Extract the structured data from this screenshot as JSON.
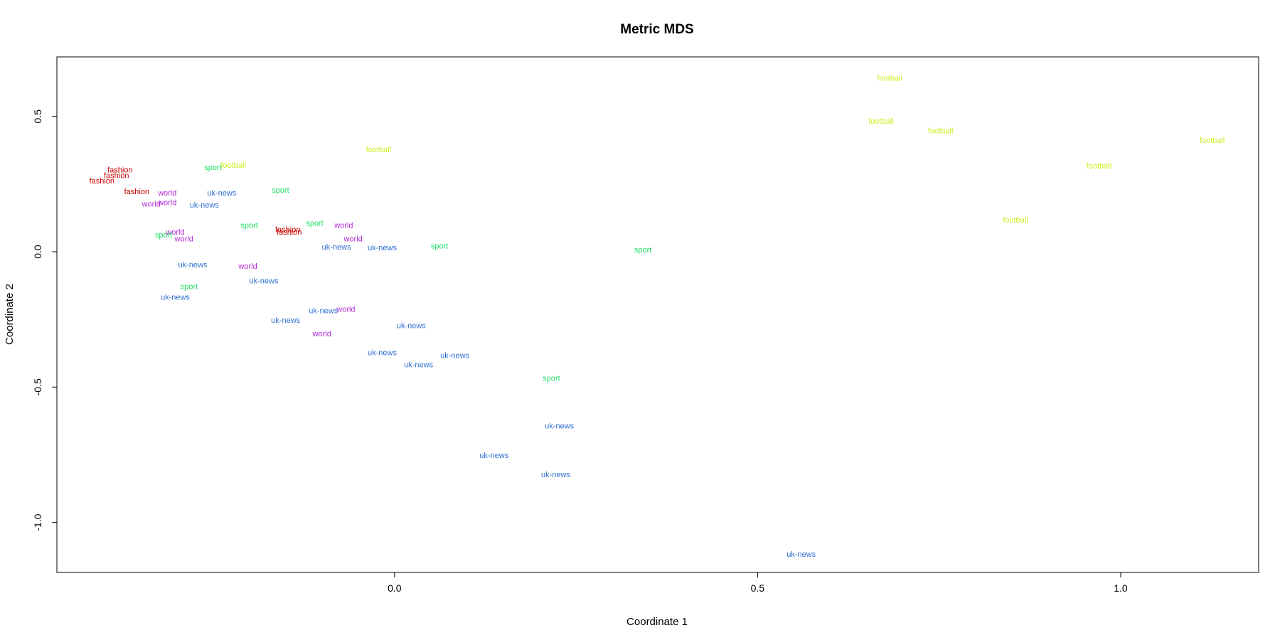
{
  "chart_data": {
    "type": "scatter",
    "title": "Metric MDS",
    "xlabel": "Coordinate 1",
    "ylabel": "Coordinate 2",
    "xlim": [
      -0.465,
      1.19
    ],
    "ylim": [
      -1.185,
      0.72
    ],
    "xticks": [
      0.0,
      0.5,
      1.0
    ],
    "xtick_labels": [
      "0.0",
      "0.5",
      "1.0"
    ],
    "yticks": [
      -1.0,
      -0.5,
      0.0,
      0.5
    ],
    "ytick_labels": [
      "-1.0",
      "-0.5",
      "0.0",
      "0.5"
    ],
    "grid": false,
    "legend": "none",
    "colors": {
      "fashion": "#cc0000",
      "world": "#b22ad8",
      "uk-news": "#2f6fd0",
      "sport": "#22dd66",
      "football": "#ccee22"
    },
    "points": [
      {
        "label": "fashion",
        "x": -0.378,
        "y": 0.303
      },
      {
        "label": "fashion",
        "x": -0.383,
        "y": 0.283
      },
      {
        "label": "fashion",
        "x": -0.403,
        "y": 0.263
      },
      {
        "label": "fashion",
        "x": -0.355,
        "y": 0.223
      },
      {
        "label": "fashion",
        "x": -0.147,
        "y": 0.083
      },
      {
        "label": "fashion",
        "x": -0.145,
        "y": 0.073
      },
      {
        "label": "world",
        "x": -0.313,
        "y": 0.218
      },
      {
        "label": "world",
        "x": -0.313,
        "y": 0.183
      },
      {
        "label": "world",
        "x": -0.335,
        "y": 0.178
      },
      {
        "label": "world",
        "x": -0.302,
        "y": 0.073
      },
      {
        "label": "world",
        "x": -0.29,
        "y": 0.048
      },
      {
        "label": "world",
        "x": -0.202,
        "y": -0.052
      },
      {
        "label": "world",
        "x": -0.07,
        "y": 0.098
      },
      {
        "label": "world",
        "x": -0.057,
        "y": 0.048
      },
      {
        "label": "world",
        "x": -0.067,
        "y": -0.212
      },
      {
        "label": "world",
        "x": -0.1,
        "y": -0.302
      },
      {
        "label": "uk-news",
        "x": -0.238,
        "y": 0.218
      },
      {
        "label": "uk-news",
        "x": -0.262,
        "y": 0.173
      },
      {
        "label": "uk-news",
        "x": -0.278,
        "y": -0.047
      },
      {
        "label": "uk-news",
        "x": -0.302,
        "y": -0.167
      },
      {
        "label": "uk-news",
        "x": -0.18,
        "y": -0.107
      },
      {
        "label": "uk-news",
        "x": -0.08,
        "y": 0.018
      },
      {
        "label": "uk-news",
        "x": -0.017,
        "y": 0.016
      },
      {
        "label": "uk-news",
        "x": -0.15,
        "y": -0.252
      },
      {
        "label": "uk-news",
        "x": -0.098,
        "y": -0.217
      },
      {
        "label": "uk-news",
        "x": 0.023,
        "y": -0.272
      },
      {
        "label": "uk-news",
        "x": -0.017,
        "y": -0.372
      },
      {
        "label": "uk-news",
        "x": 0.033,
        "y": -0.417
      },
      {
        "label": "uk-news",
        "x": 0.083,
        "y": -0.382
      },
      {
        "label": "uk-news",
        "x": 0.227,
        "y": -0.642
      },
      {
        "label": "uk-news",
        "x": 0.137,
        "y": -0.752
      },
      {
        "label": "uk-news",
        "x": 0.222,
        "y": -0.822
      },
      {
        "label": "uk-news",
        "x": 0.56,
        "y": -1.117
      },
      {
        "label": "sport",
        "x": -0.25,
        "y": 0.313
      },
      {
        "label": "sport",
        "x": -0.157,
        "y": 0.228
      },
      {
        "label": "sport",
        "x": -0.2,
        "y": 0.098
      },
      {
        "label": "sport",
        "x": -0.11,
        "y": 0.106
      },
      {
        "label": "sport",
        "x": -0.318,
        "y": 0.063
      },
      {
        "label": "sport",
        "x": -0.283,
        "y": -0.127
      },
      {
        "label": "sport",
        "x": 0.062,
        "y": 0.023
      },
      {
        "label": "sport",
        "x": 0.342,
        "y": 0.008
      },
      {
        "label": "sport",
        "x": 0.216,
        "y": -0.467
      },
      {
        "label": "football",
        "x": -0.222,
        "y": 0.32
      },
      {
        "label": "football",
        "x": -0.022,
        "y": 0.378
      },
      {
        "label": "football",
        "x": 0.682,
        "y": 0.643
      },
      {
        "label": "football",
        "x": 0.67,
        "y": 0.483
      },
      {
        "label": "football",
        "x": 0.752,
        "y": 0.448
      },
      {
        "label": "football",
        "x": 1.126,
        "y": 0.413
      },
      {
        "label": "football",
        "x": 0.97,
        "y": 0.318
      },
      {
        "label": "football",
        "x": 0.855,
        "y": 0.118
      }
    ]
  }
}
